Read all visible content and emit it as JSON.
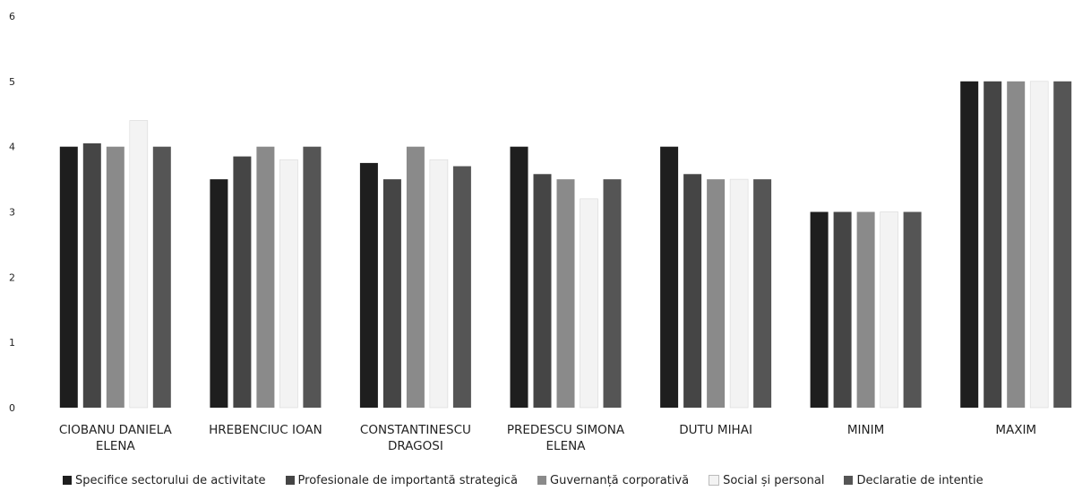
{
  "chart_data": {
    "type": "bar",
    "categories": [
      [
        "CIOBANU DANIELA",
        "ELENA"
      ],
      [
        "HREBENCIUC IOAN"
      ],
      [
        "CONSTANTINESCU",
        "DRAGOSI"
      ],
      [
        "PREDESCU SIMONA",
        "ELENA"
      ],
      [
        "DUTU MIHAI"
      ],
      [
        "MINIM"
      ],
      [
        "MAXIM"
      ]
    ],
    "series": [
      {
        "name": "Specifice sectorului de activitate",
        "values": [
          4.0,
          3.5,
          3.75,
          4.0,
          4.0,
          3.0,
          5.0
        ],
        "color": "#1e1e1e"
      },
      {
        "name": "Profesionale de importantă strategică",
        "values": [
          4.05,
          3.85,
          3.5,
          3.58,
          3.58,
          3.0,
          5.0
        ],
        "color": "#454545"
      },
      {
        "name": "Guvernanță corporativă",
        "values": [
          4.0,
          4.0,
          4.0,
          3.5,
          3.5,
          3.0,
          5.0
        ],
        "color": "#8a8a8a"
      },
      {
        "name": "Social și personal",
        "values": [
          4.4,
          3.8,
          3.8,
          3.2,
          3.5,
          3.0,
          5.0
        ],
        "color": "#f3f3f3"
      },
      {
        "name": "Declaratie de intentie",
        "values": [
          4.0,
          4.0,
          3.7,
          3.5,
          3.5,
          3.0,
          5.0
        ],
        "color": "#555555"
      }
    ],
    "ylim": [
      0,
      6
    ],
    "yticks": [
      "0",
      "1",
      "2",
      "3",
      "4",
      "5",
      "6"
    ],
    "grid": false,
    "legend": "bottom"
  }
}
